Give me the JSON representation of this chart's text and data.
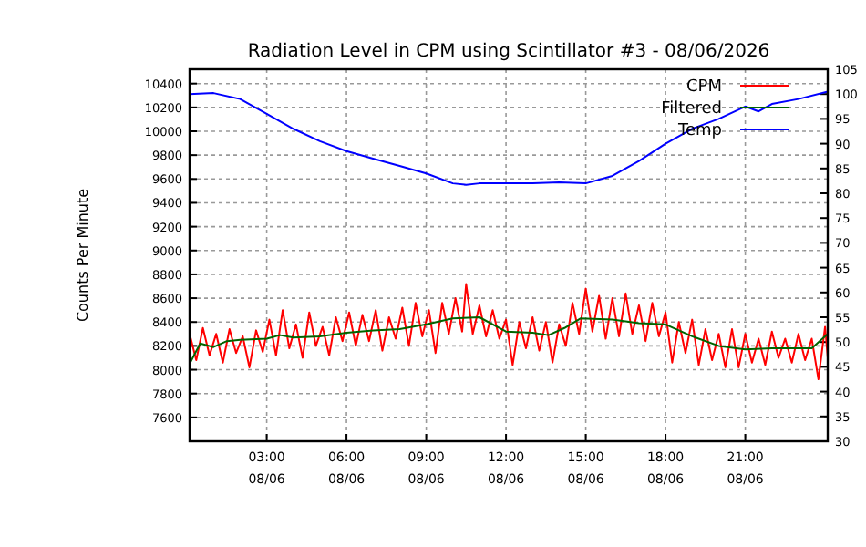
{
  "chart_data": {
    "type": "line",
    "title": "Radiation Level in CPM using Scintillator #3 - 08/06/2026",
    "ylabel": "Counts Per Minute",
    "xlim": [
      "2026-06-08T00:06",
      "2026-06-09T00:06"
    ],
    "xticks": [
      {
        "value": "2026-06-08T03:00",
        "label": "03:00\n08/06"
      },
      {
        "value": "2026-06-08T06:00",
        "label": "06:00\n08/06"
      },
      {
        "value": "2026-06-08T09:00",
        "label": "09:00\n08/06"
      },
      {
        "value": "2026-06-08T12:00",
        "label": "12:00\n08/06"
      },
      {
        "value": "2026-06-08T15:00",
        "label": "15:00\n08/06"
      },
      {
        "value": "2026-06-08T18:00",
        "label": "18:00\n08/06"
      },
      {
        "value": "2026-06-08T21:00",
        "label": "21:00\n08/06"
      }
    ],
    "ylim": [
      7400,
      10520
    ],
    "yticks": [
      7600,
      7800,
      8000,
      8200,
      8400,
      8600,
      8800,
      9000,
      9200,
      9400,
      9600,
      9800,
      10000,
      10200,
      10400
    ],
    "y2lim": [
      30,
      105
    ],
    "y2ticks": [
      30,
      35,
      40,
      45,
      50,
      55,
      60,
      65,
      70,
      75,
      80,
      85,
      90,
      95,
      100,
      105
    ],
    "grid": true,
    "legend": "top right",
    "line_style": "solid",
    "marker": "none",
    "series": [
      {
        "name": "CPM",
        "color": "#ff0000",
        "x": [
          "2026-06-08T00:06",
          "2026-06-08T00:21",
          "2026-06-08T00:36",
          "2026-06-08T00:51",
          "2026-06-08T01:06",
          "2026-06-08T01:21",
          "2026-06-08T01:36",
          "2026-06-08T01:51",
          "2026-06-08T02:06",
          "2026-06-08T02:21",
          "2026-06-08T02:36",
          "2026-06-08T02:51",
          "2026-06-08T03:06",
          "2026-06-08T03:21",
          "2026-06-08T03:36",
          "2026-06-08T03:51",
          "2026-06-08T04:06",
          "2026-06-08T04:21",
          "2026-06-08T04:36",
          "2026-06-08T04:51",
          "2026-06-08T05:06",
          "2026-06-08T05:21",
          "2026-06-08T05:36",
          "2026-06-08T05:51",
          "2026-06-08T06:06",
          "2026-06-08T06:21",
          "2026-06-08T06:36",
          "2026-06-08T06:51",
          "2026-06-08T07:06",
          "2026-06-08T07:21",
          "2026-06-08T07:36",
          "2026-06-08T07:51",
          "2026-06-08T08:06",
          "2026-06-08T08:21",
          "2026-06-08T08:36",
          "2026-06-08T08:51",
          "2026-06-08T09:06",
          "2026-06-08T09:21",
          "2026-06-08T09:36",
          "2026-06-08T09:51",
          "2026-06-08T10:06",
          "2026-06-08T10:21",
          "2026-06-08T10:30",
          "2026-06-08T10:45",
          "2026-06-08T11:00",
          "2026-06-08T11:15",
          "2026-06-08T11:30",
          "2026-06-08T11:45",
          "2026-06-08T12:00",
          "2026-06-08T12:15",
          "2026-06-08T12:30",
          "2026-06-08T12:45",
          "2026-06-08T13:00",
          "2026-06-08T13:15",
          "2026-06-08T13:30",
          "2026-06-08T13:45",
          "2026-06-08T14:00",
          "2026-06-08T14:15",
          "2026-06-08T14:30",
          "2026-06-08T14:45",
          "2026-06-08T15:00",
          "2026-06-08T15:15",
          "2026-06-08T15:30",
          "2026-06-08T15:45",
          "2026-06-08T16:00",
          "2026-06-08T16:15",
          "2026-06-08T16:30",
          "2026-06-08T16:45",
          "2026-06-08T17:00",
          "2026-06-08T17:15",
          "2026-06-08T17:30",
          "2026-06-08T17:45",
          "2026-06-08T18:00",
          "2026-06-08T18:15",
          "2026-06-08T18:30",
          "2026-06-08T18:45",
          "2026-06-08T19:00",
          "2026-06-08T19:15",
          "2026-06-08T19:30",
          "2026-06-08T19:45",
          "2026-06-08T20:00",
          "2026-06-08T20:15",
          "2026-06-08T20:30",
          "2026-06-08T20:45",
          "2026-06-08T21:00",
          "2026-06-08T21:15",
          "2026-06-08T21:30",
          "2026-06-08T21:45",
          "2026-06-08T22:00",
          "2026-06-08T22:15",
          "2026-06-08T22:30",
          "2026-06-08T22:45",
          "2026-06-08T23:00",
          "2026-06-08T23:15",
          "2026-06-08T23:30",
          "2026-06-08T23:45",
          "2026-06-09T00:00",
          "2026-06-09T00:06"
        ],
        "values": [
          8300,
          8080,
          8350,
          8120,
          8300,
          8060,
          8340,
          8140,
          8280,
          8020,
          8330,
          8150,
          8420,
          8120,
          8500,
          8180,
          8380,
          8100,
          8480,
          8200,
          8360,
          8120,
          8440,
          8240,
          8480,
          8200,
          8460,
          8240,
          8500,
          8160,
          8440,
          8260,
          8520,
          8200,
          8560,
          8280,
          8500,
          8140,
          8560,
          8300,
          8600,
          8320,
          8720,
          8300,
          8540,
          8280,
          8500,
          8260,
          8420,
          8040,
          8400,
          8180,
          8440,
          8160,
          8400,
          8060,
          8380,
          8200,
          8560,
          8300,
          8680,
          8320,
          8620,
          8260,
          8600,
          8280,
          8640,
          8300,
          8540,
          8240,
          8560,
          8280,
          8480,
          8060,
          8400,
          8140,
          8420,
          8040,
          8340,
          8080,
          8300,
          8020,
          8340,
          8020,
          8300,
          8060,
          8260,
          8040,
          8320,
          8100,
          8260,
          8060,
          8300,
          8080,
          8260,
          7920,
          8360,
          8100
        ]
      },
      {
        "name": "Filtered",
        "color": "#006400",
        "x": [
          "2026-06-08T00:06",
          "2026-06-08T00:30",
          "2026-06-08T01:00",
          "2026-06-08T01:30",
          "2026-06-08T02:00",
          "2026-06-08T03:00",
          "2026-06-08T03:30",
          "2026-06-08T04:00",
          "2026-06-08T05:00",
          "2026-06-08T06:00",
          "2026-06-08T07:00",
          "2026-06-08T08:00",
          "2026-06-08T09:00",
          "2026-06-08T10:00",
          "2026-06-08T11:00",
          "2026-06-08T12:00",
          "2026-06-08T13:00",
          "2026-06-08T13:36",
          "2026-06-08T14:12",
          "2026-06-08T14:48",
          "2026-06-08T16:00",
          "2026-06-08T17:00",
          "2026-06-08T18:00",
          "2026-06-08T19:00",
          "2026-06-08T20:00",
          "2026-06-08T21:00",
          "2026-06-08T22:00",
          "2026-06-08T23:00",
          "2026-06-08T23:30",
          "2026-06-09T00:06"
        ],
        "values": [
          8050,
          8220,
          8190,
          8240,
          8250,
          8260,
          8290,
          8270,
          8280,
          8310,
          8330,
          8340,
          8380,
          8430,
          8440,
          8320,
          8310,
          8290,
          8350,
          8430,
          8420,
          8390,
          8380,
          8280,
          8200,
          8170,
          8180,
          8180,
          8180,
          8300
        ]
      },
      {
        "name": "Temp",
        "color": "#0000ff",
        "axis": "y2",
        "x": [
          "2026-06-08T00:06",
          "2026-06-08T01:00",
          "2026-06-08T02:00",
          "2026-06-08T03:00",
          "2026-06-08T04:00",
          "2026-06-08T05:00",
          "2026-06-08T06:00",
          "2026-06-08T07:00",
          "2026-06-08T08:00",
          "2026-06-08T09:00",
          "2026-06-08T10:00",
          "2026-06-08T10:30",
          "2026-06-08T11:00",
          "2026-06-08T12:00",
          "2026-06-08T13:00",
          "2026-06-08T14:00",
          "2026-06-08T15:00",
          "2026-06-08T16:00",
          "2026-06-08T17:00",
          "2026-06-08T18:00",
          "2026-06-08T19:00",
          "2026-06-08T20:00",
          "2026-06-08T21:00",
          "2026-06-08T21:30",
          "2026-06-08T22:00",
          "2026-06-08T23:00",
          "2026-06-09T00:06"
        ],
        "values": [
          100,
          100.2,
          99,
          96,
          93,
          90.5,
          88.5,
          87,
          85.5,
          84,
          82,
          81.7,
          82,
          82,
          82,
          82.2,
          82,
          83.5,
          86.5,
          90,
          93,
          95,
          97.5,
          96.5,
          98,
          99,
          100.5
        ]
      }
    ]
  }
}
